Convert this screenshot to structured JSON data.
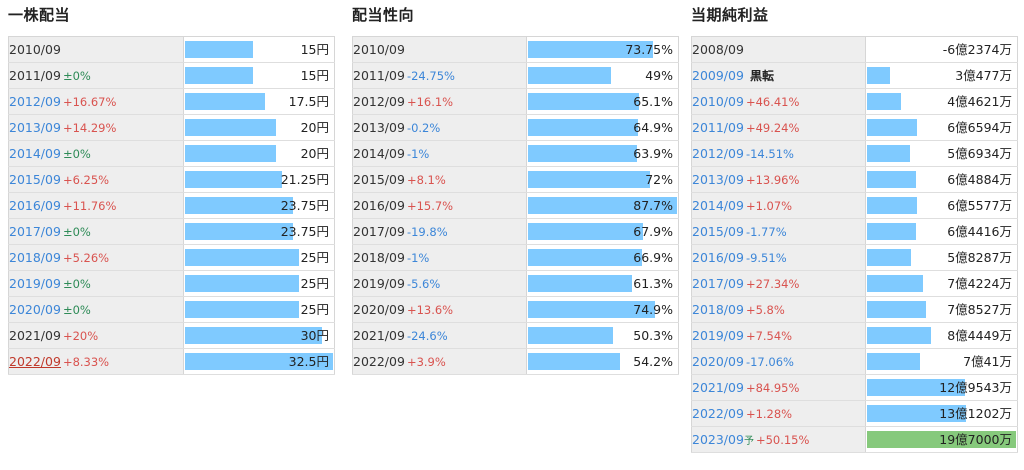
{
  "panels": [
    {
      "id": "dividend",
      "title": "一株配当",
      "rows": [
        {
          "year": "2010/09",
          "change": "",
          "trend": "none",
          "value": "15円",
          "v": 15,
          "year_style": "",
          "tag": "",
          "mark": ""
        },
        {
          "year": "2011/09",
          "change": "±0%",
          "trend": "flat",
          "value": "15円",
          "v": 15,
          "year_style": "",
          "tag": "",
          "mark": ""
        },
        {
          "year": "2012/09",
          "change": "+16.67%",
          "trend": "up",
          "value": "17.5円",
          "v": 17.5,
          "year_style": "blue",
          "tag": "",
          "mark": ""
        },
        {
          "year": "2013/09",
          "change": "+14.29%",
          "trend": "up",
          "value": "20円",
          "v": 20,
          "year_style": "blue",
          "tag": "",
          "mark": ""
        },
        {
          "year": "2014/09",
          "change": "±0%",
          "trend": "flat",
          "value": "20円",
          "v": 20,
          "year_style": "blue",
          "tag": "",
          "mark": ""
        },
        {
          "year": "2015/09",
          "change": "+6.25%",
          "trend": "up",
          "value": "21.25円",
          "v": 21.25,
          "year_style": "blue",
          "tag": "",
          "mark": ""
        },
        {
          "year": "2016/09",
          "change": "+11.76%",
          "trend": "up",
          "value": "23.75円",
          "v": 23.75,
          "year_style": "blue",
          "tag": "",
          "mark": ""
        },
        {
          "year": "2017/09",
          "change": "±0%",
          "trend": "flat",
          "value": "23.75円",
          "v": 23.75,
          "year_style": "blue",
          "tag": "",
          "mark": ""
        },
        {
          "year": "2018/09",
          "change": "+5.26%",
          "trend": "up",
          "value": "25円",
          "v": 25,
          "year_style": "blue",
          "tag": "",
          "mark": ""
        },
        {
          "year": "2019/09",
          "change": "±0%",
          "trend": "flat",
          "value": "25円",
          "v": 25,
          "year_style": "blue",
          "tag": "",
          "mark": ""
        },
        {
          "year": "2020/09",
          "change": "±0%",
          "trend": "flat",
          "value": "25円",
          "v": 25,
          "year_style": "blue",
          "tag": "",
          "mark": ""
        },
        {
          "year": "2021/09",
          "change": "+20%",
          "trend": "up",
          "value": "30円",
          "v": 30,
          "year_style": "",
          "tag": "",
          "mark": ""
        },
        {
          "year": "2022/09",
          "change": "+8.33%",
          "trend": "up",
          "value": "32.5円",
          "v": 32.5,
          "year_style": "link",
          "tag": "",
          "mark": ""
        }
      ]
    },
    {
      "id": "payout",
      "title": "配当性向",
      "rows": [
        {
          "year": "2010/09",
          "change": "",
          "trend": "none",
          "value": "73.75%",
          "v": 73.75,
          "year_style": "",
          "tag": "",
          "mark": ""
        },
        {
          "year": "2011/09",
          "change": "-24.75%",
          "trend": "down",
          "value": "49%",
          "v": 49,
          "year_style": "",
          "tag": "",
          "mark": ""
        },
        {
          "year": "2012/09",
          "change": "+16.1%",
          "trend": "up",
          "value": "65.1%",
          "v": 65.1,
          "year_style": "",
          "tag": "",
          "mark": ""
        },
        {
          "year": "2013/09",
          "change": "-0.2%",
          "trend": "down",
          "value": "64.9%",
          "v": 64.9,
          "year_style": "",
          "tag": "",
          "mark": ""
        },
        {
          "year": "2014/09",
          "change": "-1%",
          "trend": "down",
          "value": "63.9%",
          "v": 63.9,
          "year_style": "",
          "tag": "",
          "mark": ""
        },
        {
          "year": "2015/09",
          "change": "+8.1%",
          "trend": "up",
          "value": "72%",
          "v": 72,
          "year_style": "",
          "tag": "",
          "mark": ""
        },
        {
          "year": "2016/09",
          "change": "+15.7%",
          "trend": "up",
          "value": "87.7%",
          "v": 87.7,
          "year_style": "",
          "tag": "",
          "mark": ""
        },
        {
          "year": "2017/09",
          "change": "-19.8%",
          "trend": "down",
          "value": "67.9%",
          "v": 67.9,
          "year_style": "",
          "tag": "",
          "mark": ""
        },
        {
          "year": "2018/09",
          "change": "-1%",
          "trend": "down",
          "value": "66.9%",
          "v": 66.9,
          "year_style": "",
          "tag": "",
          "mark": ""
        },
        {
          "year": "2019/09",
          "change": "-5.6%",
          "trend": "down",
          "value": "61.3%",
          "v": 61.3,
          "year_style": "",
          "tag": "",
          "mark": ""
        },
        {
          "year": "2020/09",
          "change": "+13.6%",
          "trend": "up",
          "value": "74.9%",
          "v": 74.9,
          "year_style": "",
          "tag": "",
          "mark": ""
        },
        {
          "year": "2021/09",
          "change": "-24.6%",
          "trend": "down",
          "value": "50.3%",
          "v": 50.3,
          "year_style": "",
          "tag": "",
          "mark": ""
        },
        {
          "year": "2022/09",
          "change": "+3.9%",
          "trend": "up",
          "value": "54.2%",
          "v": 54.2,
          "year_style": "",
          "tag": "",
          "mark": ""
        }
      ]
    },
    {
      "id": "netprofit",
      "title": "当期純利益",
      "rows": [
        {
          "year": "2008/09",
          "change": "",
          "trend": "none",
          "value": "-6億2374万",
          "v": -62374,
          "year_style": "",
          "tag": "",
          "mark": ""
        },
        {
          "year": "2009/09",
          "change": "",
          "trend": "none",
          "value": "3億477万",
          "v": 30477,
          "year_style": "blue",
          "tag": "黒転",
          "mark": ""
        },
        {
          "year": "2010/09",
          "change": "+46.41%",
          "trend": "up",
          "value": "4億4621万",
          "v": 44621,
          "year_style": "blue",
          "tag": "",
          "mark": ""
        },
        {
          "year": "2011/09",
          "change": "+49.24%",
          "trend": "up",
          "value": "6億6594万",
          "v": 66594,
          "year_style": "blue",
          "tag": "",
          "mark": ""
        },
        {
          "year": "2012/09",
          "change": "-14.51%",
          "trend": "down",
          "value": "5億6934万",
          "v": 56934,
          "year_style": "blue",
          "tag": "",
          "mark": ""
        },
        {
          "year": "2013/09",
          "change": "+13.96%",
          "trend": "up",
          "value": "6億4884万",
          "v": 64884,
          "year_style": "blue",
          "tag": "",
          "mark": ""
        },
        {
          "year": "2014/09",
          "change": "+1.07%",
          "trend": "up",
          "value": "6億5577万",
          "v": 65577,
          "year_style": "blue",
          "tag": "",
          "mark": ""
        },
        {
          "year": "2015/09",
          "change": "-1.77%",
          "trend": "down",
          "value": "6億4416万",
          "v": 64416,
          "year_style": "blue",
          "tag": "",
          "mark": ""
        },
        {
          "year": "2016/09",
          "change": "-9.51%",
          "trend": "down",
          "value": "5億8287万",
          "v": 58287,
          "year_style": "blue",
          "tag": "",
          "mark": ""
        },
        {
          "year": "2017/09",
          "change": "+27.34%",
          "trend": "up",
          "value": "7億4224万",
          "v": 74224,
          "year_style": "blue",
          "tag": "",
          "mark": ""
        },
        {
          "year": "2018/09",
          "change": "+5.8%",
          "trend": "up",
          "value": "7億8527万",
          "v": 78527,
          "year_style": "blue",
          "tag": "",
          "mark": ""
        },
        {
          "year": "2019/09",
          "change": "+7.54%",
          "trend": "up",
          "value": "8億4449万",
          "v": 84449,
          "year_style": "blue",
          "tag": "",
          "mark": ""
        },
        {
          "year": "2020/09",
          "change": "-17.06%",
          "trend": "down",
          "value": "7億41万",
          "v": 70041,
          "year_style": "blue",
          "tag": "",
          "mark": ""
        },
        {
          "year": "2021/09",
          "change": "+84.95%",
          "trend": "up",
          "value": "12億9543万",
          "v": 129543,
          "year_style": "blue",
          "tag": "",
          "mark": ""
        },
        {
          "year": "2022/09",
          "change": "+1.28%",
          "trend": "up",
          "value": "13億1202万",
          "v": 131202,
          "year_style": "blue",
          "tag": "",
          "mark": ""
        },
        {
          "year": "2023/09",
          "change": "+50.15%",
          "trend": "up",
          "value": "19億7000万",
          "v": 197000,
          "year_style": "blue",
          "tag": "",
          "mark": "予",
          "forecast": true
        }
      ]
    }
  ],
  "colors": {
    "bar": "#7fcaff",
    "forecast_bar": "#86c97c",
    "up": "#d9534f",
    "down": "#3c86d8",
    "flat": "#2e8b57"
  }
}
